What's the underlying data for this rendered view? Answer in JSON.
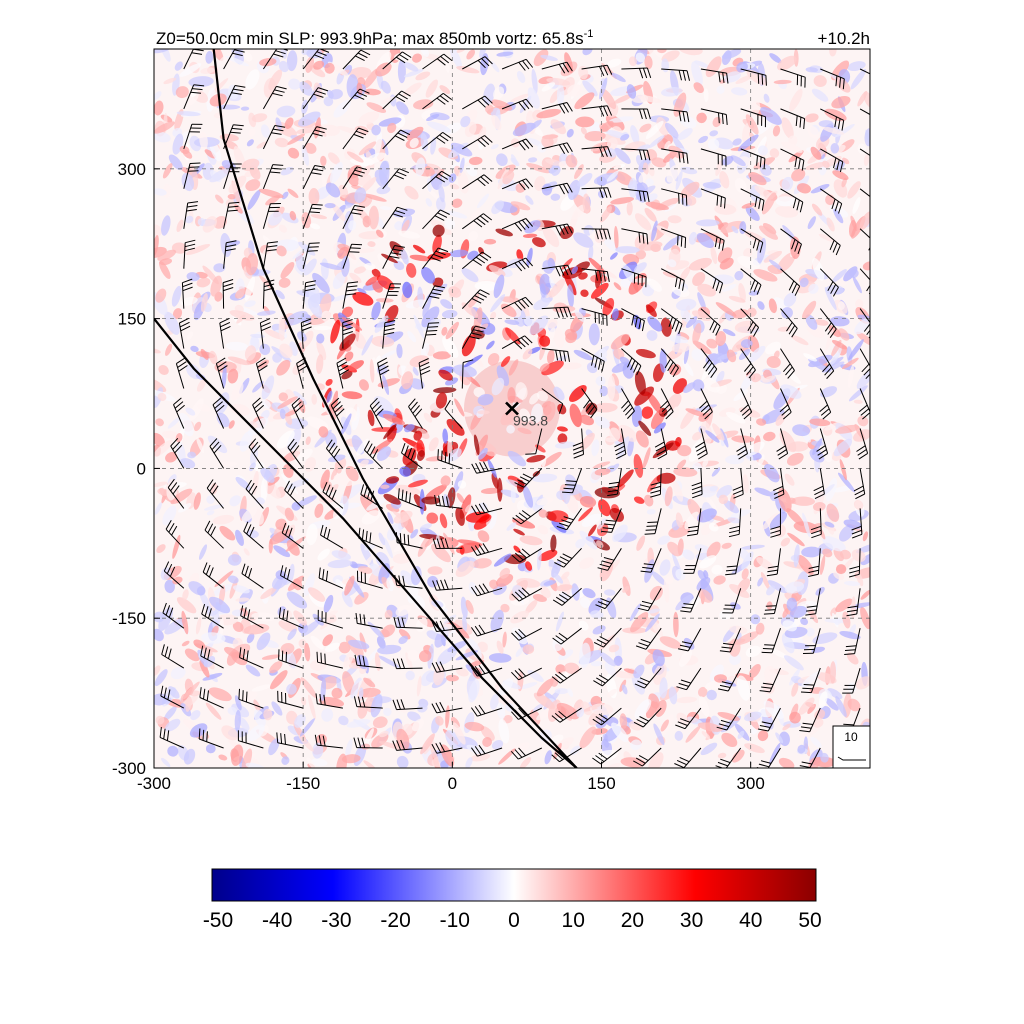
{
  "title": {
    "main": "Z0=50.0cm  min SLP: 993.9hPa; max 850mb vortz:  65.8s",
    "superscript": "-1",
    "time": "+10.2h"
  },
  "chart_data": {
    "type": "heatmap",
    "description_free": true,
    "xlim": [
      -300,
      420
    ],
    "ylim": [
      -300,
      420
    ],
    "x_ticks": [
      -300,
      -150,
      0,
      150,
      300
    ],
    "y_ticks": [
      -300,
      -150,
      0,
      150,
      300
    ],
    "x_tick_labels": [
      "-300",
      "-150",
      "0",
      "150",
      "300"
    ],
    "y_tick_labels": [
      "-300",
      "-150",
      "0",
      "150",
      "300"
    ],
    "grid": true,
    "center": {
      "x": 60,
      "y": 60,
      "marker": "×",
      "label": "993.8"
    },
    "wind_barb_key": {
      "label": "10",
      "placement": "bottom-right"
    },
    "colorbar": {
      "range": [
        -50,
        50
      ],
      "ticks": [
        "-50",
        "-40",
        "-30",
        "-20",
        "-10",
        "0",
        "10",
        "20",
        "30",
        "40",
        "50"
      ],
      "colors": [
        "#00008b",
        "#0000ff",
        "#ffffff",
        "#ff0000",
        "#8b0000"
      ]
    },
    "lines": [
      {
        "name": "",
        "points": [
          [
            -240,
            420
          ],
          [
            -230,
            330
          ],
          [
            -190,
            200
          ],
          [
            -140,
            90
          ],
          [
            -90,
            -10
          ],
          [
            -20,
            -130
          ],
          [
            50,
            -220
          ],
          [
            125,
            -300
          ]
        ]
      },
      {
        "name": "",
        "points": [
          [
            -300,
            150
          ],
          [
            -260,
            100
          ],
          [
            -190,
            30
          ],
          [
            -110,
            -50
          ],
          [
            -40,
            -130
          ],
          [
            30,
            -210
          ],
          [
            90,
            -270
          ],
          [
            125,
            -300
          ]
        ]
      }
    ]
  }
}
